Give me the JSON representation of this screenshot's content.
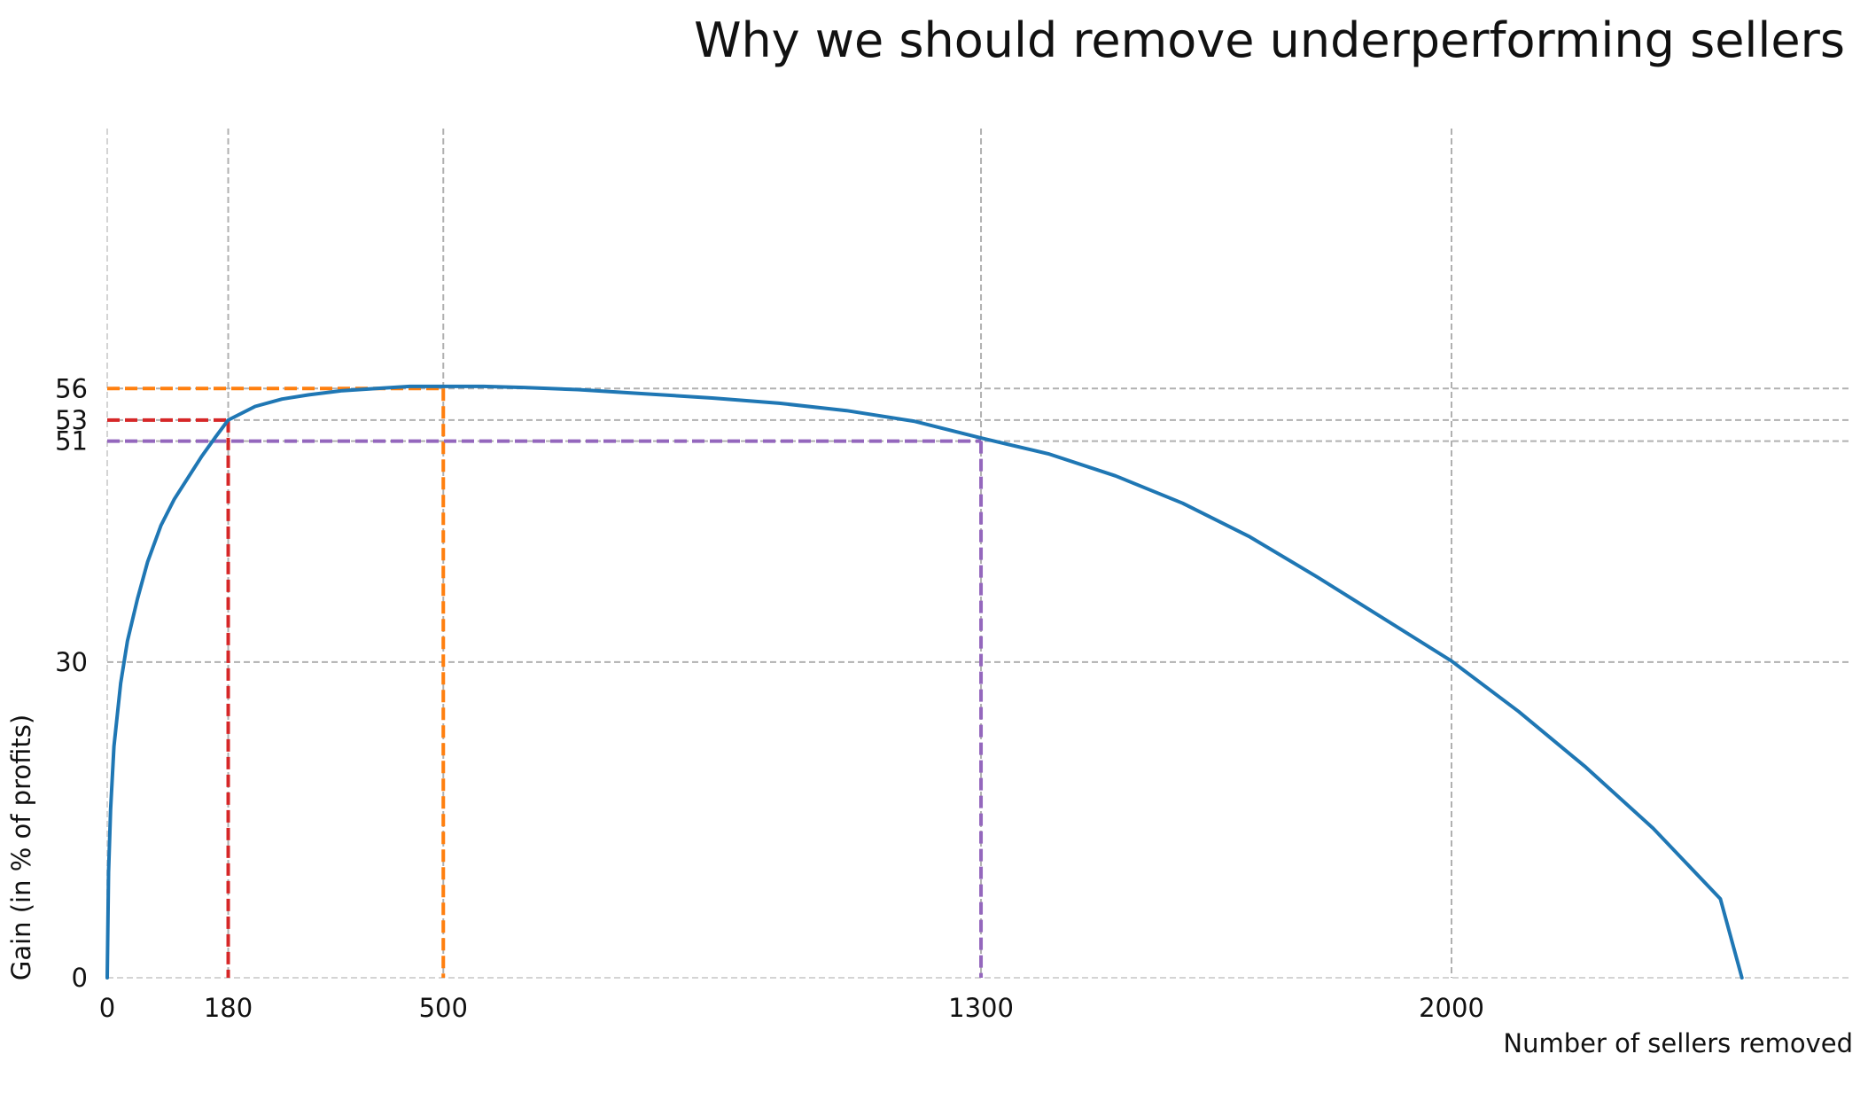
{
  "chart_data": {
    "type": "line",
    "title": "Why we should remove underperforming sellers",
    "xlabel": "Number of sellers removed",
    "ylabel": "Gain (in % of profits)",
    "xlim": [
      0,
      2600
    ],
    "ylim": [
      0,
      58
    ],
    "grid": true,
    "x_ticks": [
      0,
      180,
      500,
      1300,
      2000
    ],
    "y_ticks": [
      0,
      30,
      51,
      53,
      56
    ],
    "series": [
      {
        "color": "#1f77b4",
        "points": [
          [
            0,
            0
          ],
          [
            2,
            10
          ],
          [
            5,
            16
          ],
          [
            10,
            22
          ],
          [
            20,
            28
          ],
          [
            30,
            32
          ],
          [
            45,
            36
          ],
          [
            60,
            39.5
          ],
          [
            80,
            43
          ],
          [
            100,
            45.5
          ],
          [
            120,
            47.5
          ],
          [
            140,
            49.5
          ],
          [
            160,
            51.3
          ],
          [
            180,
            53
          ],
          [
            220,
            54.3
          ],
          [
            260,
            55
          ],
          [
            300,
            55.4
          ],
          [
            350,
            55.8
          ],
          [
            400,
            56
          ],
          [
            450,
            56.2
          ],
          [
            500,
            56.2
          ],
          [
            560,
            56.2
          ],
          [
            620,
            56.1
          ],
          [
            700,
            55.9
          ],
          [
            800,
            55.5
          ],
          [
            900,
            55.1
          ],
          [
            1000,
            54.6
          ],
          [
            1100,
            53.9
          ],
          [
            1200,
            52.9
          ],
          [
            1300,
            51.3
          ],
          [
            1400,
            49.8
          ],
          [
            1500,
            47.7
          ],
          [
            1600,
            45.1
          ],
          [
            1700,
            41.9
          ],
          [
            1800,
            38.1
          ],
          [
            1900,
            34.1
          ],
          [
            2000,
            30.1
          ],
          [
            2100,
            25.3
          ],
          [
            2200,
            20
          ],
          [
            2300,
            14.2
          ],
          [
            2400,
            7.5
          ],
          [
            2432,
            0
          ]
        ]
      }
    ],
    "reference_lines": [
      {
        "x": 180,
        "y": 53,
        "color": "#d62728"
      },
      {
        "x": 500,
        "y": 56,
        "color": "#ff7f0e"
      },
      {
        "x": 1300,
        "y": 51,
        "color": "#9467bd"
      }
    ],
    "colors": {
      "grid": "#b0b0b0",
      "text": "#111111"
    }
  }
}
